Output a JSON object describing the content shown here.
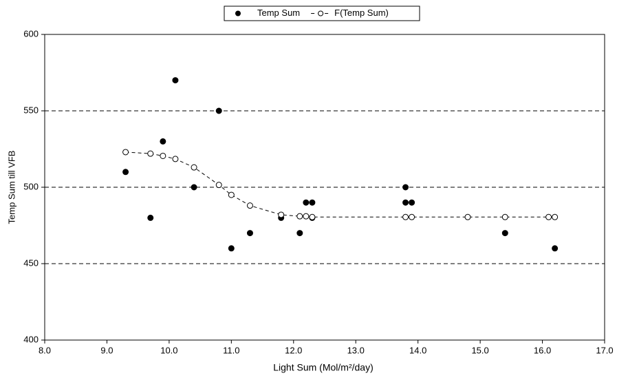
{
  "chart_data": {
    "type": "scatter",
    "x_label": "Light Sum (Mol/m²/day)",
    "y_label": "Temp Sum till VFB",
    "xlim": [
      8,
      17
    ],
    "ylim": [
      400,
      600
    ],
    "xticks": [
      {
        "value": 8,
        "label": "8.0"
      },
      {
        "value": 9,
        "label": "9.0"
      },
      {
        "value": 10,
        "label": "10.0"
      },
      {
        "value": 11,
        "label": "11.0"
      },
      {
        "value": 12,
        "label": "12.0"
      },
      {
        "value": 13,
        "label": "13.0"
      },
      {
        "value": 14,
        "label": "14.0"
      },
      {
        "value": 15,
        "label": "15.0"
      },
      {
        "value": 16,
        "label": "16.0"
      },
      {
        "value": 17,
        "label": "17.0"
      }
    ],
    "yticks": [
      400,
      450,
      500,
      550,
      600
    ],
    "grid": true,
    "legend": "top",
    "series": [
      {
        "name": "Temp Sum",
        "color": "#000000",
        "marker": "filled",
        "line": false,
        "x": [
          9.3,
          9.7,
          9.9,
          10.1,
          10.4,
          10.8,
          11.0,
          11.3,
          11.8,
          12.1,
          12.2,
          12.3,
          12.3,
          13.8,
          13.8,
          13.9,
          15.4,
          16.2
        ],
        "values": [
          510,
          480,
          530,
          570,
          500,
          550,
          460,
          470,
          480,
          470,
          490,
          490,
          480,
          500,
          490,
          490,
          470,
          460
        ]
      },
      {
        "name": "F(Temp Sum)",
        "color": "#000000",
        "marker": "open",
        "line": true,
        "x": [
          9.3,
          9.7,
          9.9,
          10.1,
          10.4,
          10.8,
          11.0,
          11.3,
          11.8,
          12.1,
          12.2,
          12.3,
          13.8,
          13.9,
          14.8,
          15.4,
          16.1,
          16.2
        ],
        "values": [
          523,
          522,
          520.5,
          518.5,
          513,
          501.5,
          495,
          488,
          482,
          481,
          481,
          480.5,
          480.5,
          480.5,
          480.5,
          480.5,
          480.5,
          480.5
        ]
      }
    ]
  }
}
